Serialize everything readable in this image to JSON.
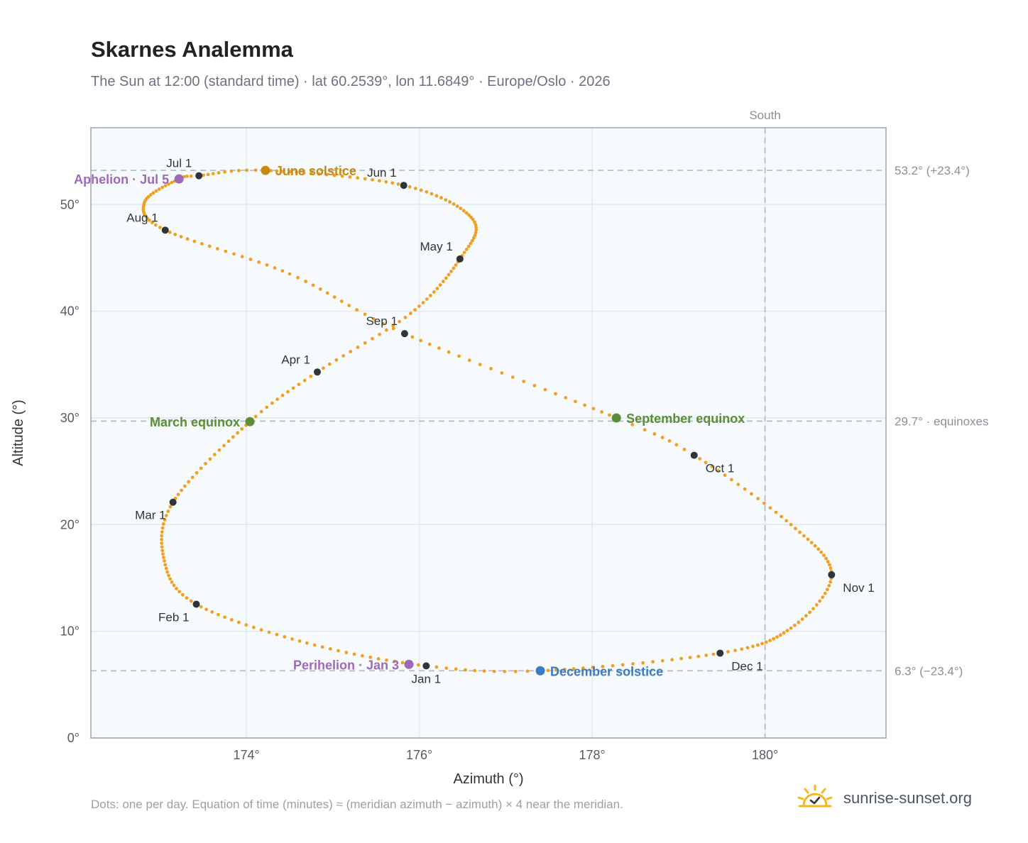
{
  "header": {
    "title": "Skarnes Analemma",
    "subtitle": "The Sun at 12:00 (standard time) · lat 60.2539°, lon 11.6849° · Europe/Oslo · 2026"
  },
  "footer": {
    "note": "Dots: one per day. Equation of time (minutes) ≈ (meridian azimuth − azimuth) × 4 near the meridian.",
    "brand": "sunrise-sunset.org"
  },
  "chart_data": {
    "type": "scatter",
    "xlabel": "Azimuth (°)",
    "ylabel": "Altitude (°)",
    "xlim": [
      172.2,
      181.4
    ],
    "ylim": [
      0,
      57.2
    ],
    "x_ticks": [
      {
        "value": 174,
        "label": "174°"
      },
      {
        "value": 176,
        "label": "176°"
      },
      {
        "value": 178,
        "label": "178°"
      },
      {
        "value": 180,
        "label": "180°"
      }
    ],
    "y_ticks": [
      {
        "value": 0,
        "label": "0°"
      },
      {
        "value": 10,
        "label": "10°"
      },
      {
        "value": 20,
        "label": "20°"
      },
      {
        "value": 30,
        "label": "30°"
      },
      {
        "value": 40,
        "label": "40°"
      },
      {
        "value": 50,
        "label": "50°"
      }
    ],
    "grid": true,
    "south_line": {
      "azimuth": 180,
      "label": "South"
    },
    "reference_lines": [
      {
        "altitude": 53.2,
        "label": "53.2° (+23.4°)"
      },
      {
        "altitude": 29.7,
        "label": "29.7° · equinoxes"
      },
      {
        "altitude": 6.3,
        "label": "6.3° (−23.4°)"
      }
    ],
    "colors": {
      "path": "#f0a020",
      "month_marker": "#2f343b",
      "solstice_june": "#c9880e",
      "solstice_december": "#3b7bc0",
      "equinox": "#5a8f35",
      "apsis": "#9b6bb8",
      "reference": "#b4bfcc",
      "plot_bg": "#f7fafd",
      "frame": "#9aa4b2"
    },
    "path_keypoints": [
      {
        "doy": 1,
        "az": 176.08,
        "alt": 6.76
      },
      {
        "doy": 16,
        "az": 174.7,
        "alt": 8.9
      },
      {
        "doy": 32,
        "az": 173.42,
        "alt": 12.54
      },
      {
        "doy": 45,
        "az": 173.05,
        "alt": 16.6
      },
      {
        "doy": 60,
        "az": 173.15,
        "alt": 22.1
      },
      {
        "doy": 79,
        "az": 174.04,
        "alt": 29.65
      },
      {
        "doy": 91,
        "az": 174.82,
        "alt": 34.3
      },
      {
        "doy": 105,
        "az": 175.9,
        "alt": 39.8
      },
      {
        "doy": 121,
        "az": 176.47,
        "alt": 44.9
      },
      {
        "doy": 135,
        "az": 176.62,
        "alt": 48.6
      },
      {
        "doy": 152,
        "az": 175.82,
        "alt": 51.8
      },
      {
        "doy": 172,
        "az": 174.22,
        "alt": 53.2
      },
      {
        "doy": 182,
        "az": 173.45,
        "alt": 52.7
      },
      {
        "doy": 186,
        "az": 173.22,
        "alt": 52.4
      },
      {
        "doy": 200,
        "az": 172.82,
        "alt": 50.2
      },
      {
        "doy": 213,
        "az": 173.06,
        "alt": 47.6
      },
      {
        "doy": 230,
        "az": 174.5,
        "alt": 43.5
      },
      {
        "doy": 244,
        "az": 175.83,
        "alt": 37.9
      },
      {
        "doy": 266,
        "az": 178.28,
        "alt": 30.0
      },
      {
        "doy": 274,
        "az": 179.18,
        "alt": 26.5
      },
      {
        "doy": 290,
        "az": 180.3,
        "alt": 20.0
      },
      {
        "doy": 305,
        "az": 180.77,
        "alt": 15.3
      },
      {
        "doy": 320,
        "az": 180.3,
        "alt": 10.3
      },
      {
        "doy": 335,
        "az": 179.48,
        "alt": 7.95
      },
      {
        "doy": 355,
        "az": 177.4,
        "alt": 6.3
      },
      {
        "doy": 366,
        "az": 176.08,
        "alt": 6.76
      }
    ],
    "month_markers": [
      {
        "label": "Jan 1",
        "az": 176.08,
        "alt": 6.76,
        "anchor": "below"
      },
      {
        "label": "Feb 1",
        "az": 173.42,
        "alt": 12.54,
        "anchor": "below-left"
      },
      {
        "label": "Mar 1",
        "az": 173.15,
        "alt": 22.1,
        "anchor": "below-left"
      },
      {
        "label": "Apr 1",
        "az": 174.82,
        "alt": 34.3,
        "anchor": "above-left"
      },
      {
        "label": "May 1",
        "az": 176.47,
        "alt": 44.9,
        "anchor": "above-left"
      },
      {
        "label": "Jun 1",
        "az": 175.82,
        "alt": 51.8,
        "anchor": "above-left"
      },
      {
        "label": "Jul 1",
        "az": 173.45,
        "alt": 52.7,
        "anchor": "above-left"
      },
      {
        "label": "Aug 1",
        "az": 173.06,
        "alt": 47.6,
        "anchor": "above-left"
      },
      {
        "label": "Sep 1",
        "az": 175.83,
        "alt": 37.9,
        "anchor": "above-left"
      },
      {
        "label": "Oct 1",
        "az": 179.18,
        "alt": 26.5,
        "anchor": "below-right"
      },
      {
        "label": "Nov 1",
        "az": 180.77,
        "alt": 15.3,
        "anchor": "below-right"
      },
      {
        "label": "Dec 1",
        "az": 179.48,
        "alt": 7.95,
        "anchor": "below-right"
      }
    ],
    "events": [
      {
        "label": "June solstice",
        "az": 174.22,
        "alt": 53.2,
        "color": "#c9880e",
        "side": "right"
      },
      {
        "label": "December solstice",
        "az": 177.4,
        "alt": 6.3,
        "color": "#3b7bc0",
        "side": "right"
      },
      {
        "label": "March equinox",
        "az": 174.04,
        "alt": 29.65,
        "color": "#5a8f35",
        "side": "left"
      },
      {
        "label": "September equinox",
        "az": 178.28,
        "alt": 30.0,
        "color": "#5a8f35",
        "side": "right"
      },
      {
        "label": "Aphelion · Jul 5",
        "az": 173.22,
        "alt": 52.4,
        "color": "#9b6bb8",
        "side": "left"
      },
      {
        "label": "Perihelion · Jan 3",
        "az": 175.88,
        "alt": 6.9,
        "color": "#9b6bb8",
        "side": "left"
      }
    ]
  }
}
